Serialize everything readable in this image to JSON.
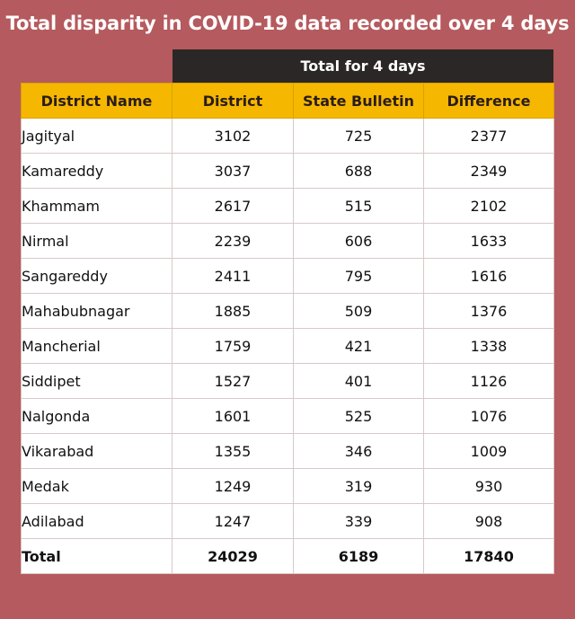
{
  "title": "Total disparity in COVID-19 data recorded over 4 days",
  "group_header": "Total for 4 days",
  "chart_data": {
    "type": "table",
    "title": "Total disparity in COVID-19 data recorded over 4 days",
    "group_header": "Total for 4 days",
    "columns": [
      "District Name",
      "District",
      "State Bulletin",
      "Difference"
    ],
    "rows": [
      [
        "Jagityal",
        "3102",
        "725",
        "2377"
      ],
      [
        "Kamareddy",
        "3037",
        "688",
        "2349"
      ],
      [
        "Khammam",
        "2617",
        "515",
        "2102"
      ],
      [
        "Nirmal",
        "2239",
        "606",
        "1633"
      ],
      [
        "Sangareddy",
        "2411",
        "795",
        "1616"
      ],
      [
        "Mahabubnagar",
        "1885",
        "509",
        "1376"
      ],
      [
        "Mancherial",
        "1759",
        "421",
        "1338"
      ],
      [
        "Siddipet",
        "1527",
        "401",
        "1126"
      ],
      [
        "Nalgonda",
        "1601",
        "525",
        "1076"
      ],
      [
        "Vikarabad",
        "1355",
        "346",
        "1009"
      ],
      [
        "Medak",
        "1249",
        "319",
        "930"
      ],
      [
        "Adilabad",
        "1247",
        "339",
        "908"
      ]
    ],
    "total": [
      "Total",
      "24029",
      "6189",
      "17840"
    ]
  },
  "colors": {
    "background": "#b55a5e",
    "header_fill": "#f5b700",
    "group_header_fill": "#2b2726",
    "cell_fill": "#ffffff"
  }
}
